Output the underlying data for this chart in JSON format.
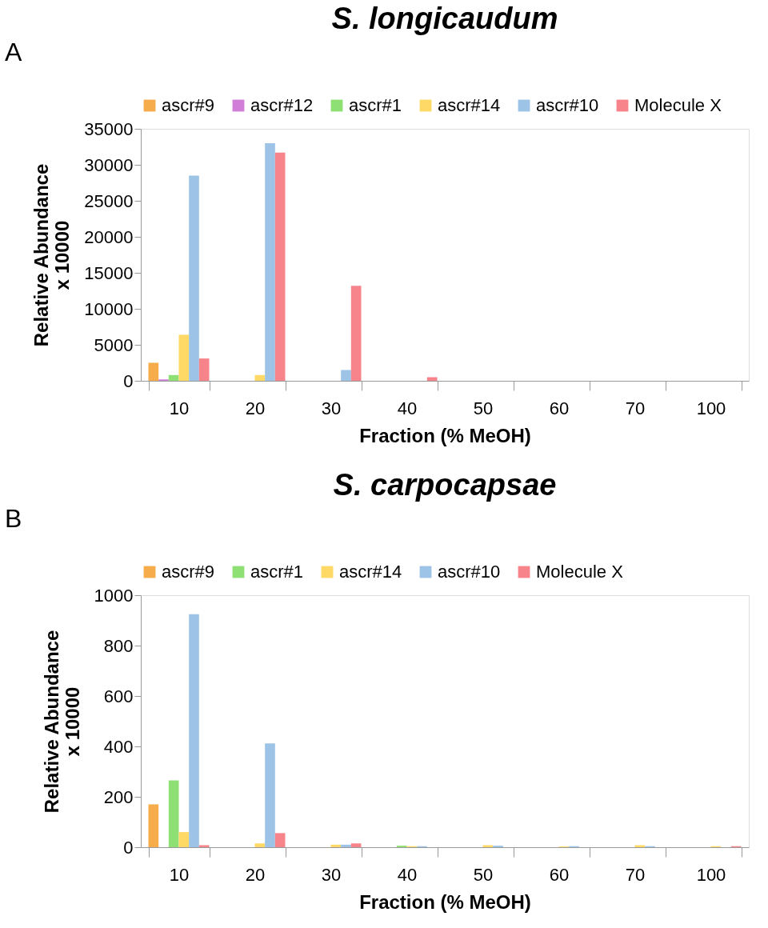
{
  "chart_data": [
    {
      "type": "bar",
      "title": "S. longicaudum",
      "xlabel": "Fraction (% MeOH)",
      "ylabel": "Relative Abundance\nx 10000",
      "annotations": [
        "A"
      ],
      "categories": [
        "10",
        "20",
        "30",
        "40",
        "50",
        "60",
        "70",
        "100"
      ],
      "series": [
        {
          "name": "ascr#9",
          "color": "#f7ac4b",
          "values": [
            2500,
            null,
            null,
            null,
            null,
            null,
            null,
            null
          ]
        },
        {
          "name": "ascr#12",
          "color": "#d07ed8",
          "values": [
            200,
            null,
            null,
            null,
            null,
            null,
            null,
            null
          ]
        },
        {
          "name": "ascr#1",
          "color": "#8ee075",
          "values": [
            800,
            null,
            null,
            null,
            null,
            null,
            null,
            null
          ]
        },
        {
          "name": "ascr#14",
          "color": "#ffd966",
          "values": [
            6400,
            800,
            null,
            null,
            null,
            null,
            null,
            null
          ]
        },
        {
          "name": "ascr#10",
          "color": "#9dc3e6",
          "values": [
            28500,
            33000,
            1500,
            null,
            null,
            null,
            null,
            null
          ]
        },
        {
          "name": "Molecule X",
          "color": "#f7848a",
          "values": [
            3100,
            31700,
            13200,
            500,
            null,
            null,
            null,
            null
          ]
        }
      ],
      "ylim": [
        0,
        35000
      ],
      "yticks": [
        0,
        5000,
        10000,
        15000,
        20000,
        25000,
        30000,
        35000
      ],
      "grid": false,
      "legend": "top"
    },
    {
      "type": "bar",
      "title": "S. carpocapsae",
      "xlabel": "Fraction (% MeOH)",
      "ylabel": "Relative Abundance\nx 10000",
      "annotations": [
        "B"
      ],
      "categories": [
        "10",
        "20",
        "30",
        "40",
        "50",
        "60",
        "70",
        "100"
      ],
      "series": [
        {
          "name": "ascr#9",
          "color": "#f7ac4b",
          "values": [
            170,
            null,
            null,
            null,
            null,
            null,
            null,
            null
          ]
        },
        {
          "name": "ascr#1",
          "color": "#8ee075",
          "values": [
            265,
            null,
            null,
            6,
            null,
            null,
            null,
            null
          ]
        },
        {
          "name": "ascr#14",
          "color": "#ffd966",
          "values": [
            60,
            15,
            10,
            4,
            8,
            3,
            8,
            4
          ]
        },
        {
          "name": "ascr#10",
          "color": "#9dc3e6",
          "values": [
            925,
            412,
            10,
            4,
            6,
            4,
            4,
            null
          ]
        },
        {
          "name": "Molecule X",
          "color": "#f7848a",
          "values": [
            8,
            56,
            15,
            null,
            null,
            null,
            null,
            4
          ]
        }
      ],
      "ylim": [
        0,
        1000
      ],
      "yticks": [
        0,
        200,
        400,
        600,
        800,
        1000
      ],
      "grid": false,
      "legend": "top"
    }
  ]
}
